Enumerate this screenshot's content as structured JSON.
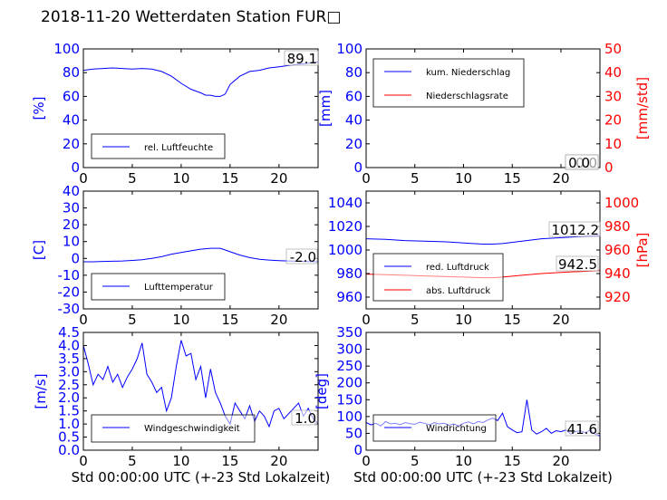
{
  "title": "2018-11-20 Wetterdaten Station FUR□",
  "colors": {
    "left_axis": "#0000ff",
    "right_axis": "#ff0000",
    "frame": "#000000"
  },
  "chart_data": [
    {
      "id": "humidity",
      "type": "line",
      "x_range": [
        0,
        24
      ],
      "xticks": [
        0,
        5,
        10,
        15,
        20
      ],
      "ylim": [
        0,
        100
      ],
      "yticks": [
        0,
        20,
        40,
        60,
        80,
        100
      ],
      "ylabel": "[%]",
      "xlabel": "",
      "legend_placement": "lower-left",
      "value_box": "89.1",
      "series": [
        {
          "name": "rel. Luftfeuchte",
          "color": "#0000ff",
          "x": [
            0,
            1,
            2,
            3,
            4,
            5,
            6,
            7,
            8,
            9,
            10,
            11,
            12,
            12.5,
            13,
            13.5,
            14,
            14.5,
            15,
            16,
            17,
            18,
            19,
            20,
            21,
            22,
            23,
            24
          ],
          "y": [
            82,
            83,
            83.5,
            84,
            83.5,
            83,
            83.5,
            83,
            81,
            77,
            71,
            66,
            63,
            61,
            61,
            60,
            60,
            62,
            70,
            77,
            81,
            82,
            84,
            85,
            86,
            87,
            88,
            89.1
          ]
        }
      ]
    },
    {
      "id": "precip",
      "type": "line",
      "x_range": [
        0,
        24
      ],
      "xticks": [
        0,
        5,
        10,
        15,
        20
      ],
      "ylim": [
        0,
        100
      ],
      "yticks": [
        0,
        20,
        40,
        60,
        80,
        100
      ],
      "ylim_right": [
        0,
        50
      ],
      "yticks_right": [
        0,
        10,
        20,
        30,
        40,
        50
      ],
      "ylabel": "[mm]",
      "ylabel_right": "[mm/std]",
      "xlabel": "",
      "legend_placement": "upper-left",
      "value_box": "0.0",
      "value_box_2": "0.0",
      "series": [
        {
          "name": "kum. Niederschlag",
          "color": "#0000ff",
          "axis": "left",
          "x": [
            0,
            24
          ],
          "y": [
            0,
            0
          ]
        },
        {
          "name": "Niederschlagsrate",
          "color": "#ff0000",
          "axis": "right",
          "x": [
            0,
            24
          ],
          "y": [
            0,
            0
          ]
        }
      ]
    },
    {
      "id": "temperature",
      "type": "line",
      "x_range": [
        0,
        24
      ],
      "xticks": [
        0,
        5,
        10,
        15,
        20
      ],
      "ylim": [
        -30,
        40
      ],
      "yticks": [
        -30,
        -20,
        -10,
        0,
        10,
        20,
        30,
        40
      ],
      "ylabel": "[C]",
      "xlabel": "",
      "legend_placement": "lower-left",
      "value_box": "-2.0",
      "series": [
        {
          "name": "Lufttemperatur",
          "color": "#0000ff",
          "x": [
            0,
            1,
            2,
            3,
            4,
            5,
            6,
            7,
            8,
            9,
            10,
            11,
            12,
            13,
            14,
            15,
            16,
            17,
            18,
            19,
            20,
            21,
            22,
            23,
            24
          ],
          "y": [
            -2,
            -2,
            -1.8,
            -1.7,
            -1.5,
            -1.2,
            -0.8,
            0,
            1,
            2.5,
            3.5,
            4.5,
            5.5,
            6,
            6,
            4,
            2,
            0.5,
            -0.5,
            -1,
            -1.3,
            -1.5,
            -1.7,
            -1.9,
            -2.0
          ]
        }
      ]
    },
    {
      "id": "pressure",
      "type": "line",
      "x_range": [
        0,
        24
      ],
      "xticks": [
        0,
        5,
        10,
        15,
        20
      ],
      "ylim": [
        950,
        1050
      ],
      "yticks": [
        960,
        980,
        1000,
        1020,
        1040
      ],
      "ylim_right": [
        910,
        1010
      ],
      "yticks_right": [
        920,
        940,
        960,
        980,
        1000
      ],
      "ylabel": "",
      "ylabel_right": "[hPa]",
      "xlabel": "",
      "legend_placement": "lower-left",
      "value_box": "1012.2",
      "value_box_2": "942.5",
      "series": [
        {
          "name": "red. Luftdruck",
          "color": "#0000ff",
          "axis": "left",
          "x": [
            0,
            2,
            4,
            6,
            8,
            10,
            12,
            13,
            14,
            16,
            18,
            20,
            22,
            24
          ],
          "y": [
            1009.5,
            1009,
            1008,
            1007.5,
            1007,
            1006,
            1005,
            1005,
            1005.5,
            1007.5,
            1009.5,
            1010.5,
            1011.5,
            1012.2
          ]
        },
        {
          "name": "abs. Luftdruck",
          "color": "#ff0000",
          "axis": "right",
          "x": [
            0,
            2,
            4,
            6,
            8,
            10,
            12,
            13,
            14,
            16,
            18,
            20,
            22,
            24
          ],
          "y": [
            939.5,
            939,
            938.5,
            938,
            937.5,
            937,
            936.5,
            936.5,
            937,
            938.5,
            940,
            941,
            941.8,
            942.5
          ]
        }
      ]
    },
    {
      "id": "wind_speed",
      "type": "line",
      "x_range": [
        0,
        24
      ],
      "xticks": [
        0,
        5,
        10,
        15,
        20
      ],
      "ylim": [
        0,
        4.5
      ],
      "yticks": [
        0.0,
        0.5,
        1.0,
        1.5,
        2.0,
        2.5,
        3.0,
        3.5,
        4.0,
        4.5
      ],
      "ylabel": "[m/s]",
      "xlabel": "Std 00:00:00 UTC (+-23 Std Lokalzeit)",
      "legend_placement": "lower-left",
      "value_box": "1.0",
      "series": [
        {
          "name": "Windgeschwindigkeit",
          "color": "#0000ff",
          "x": [
            0,
            0.5,
            1,
            1.5,
            2,
            2.5,
            3,
            3.5,
            4,
            4.5,
            5,
            5.5,
            6,
            6.5,
            7,
            7.5,
            8,
            8.5,
            9,
            9.5,
            10,
            10.5,
            11,
            11.5,
            12,
            12.5,
            13,
            13.5,
            14,
            14.5,
            15,
            15.5,
            16,
            16.5,
            17,
            17.5,
            18,
            18.5,
            19,
            19.5,
            20,
            20.5,
            21,
            21.5,
            22,
            22.5,
            23,
            23.5,
            24
          ],
          "y": [
            4.0,
            3.3,
            2.5,
            2.9,
            2.7,
            3.2,
            2.6,
            2.9,
            2.4,
            2.8,
            3.1,
            3.5,
            4.1,
            2.9,
            2.6,
            2.2,
            2.4,
            1.5,
            2.0,
            3.2,
            4.2,
            3.6,
            3.7,
            2.7,
            3.2,
            2.0,
            3.1,
            2.2,
            1.8,
            1.3,
            1.0,
            1.8,
            1.5,
            1.2,
            1.7,
            1.1,
            1.5,
            1.3,
            0.9,
            1.5,
            1.6,
            1.2,
            1.4,
            1.6,
            1.8,
            1.3,
            1.6,
            1.2,
            1.0
          ]
        }
      ]
    },
    {
      "id": "wind_dir",
      "type": "line",
      "x_range": [
        0,
        24
      ],
      "xticks": [
        0,
        5,
        10,
        15,
        20
      ],
      "ylim": [
        0,
        350
      ],
      "yticks": [
        0,
        50,
        100,
        150,
        200,
        250,
        300,
        350
      ],
      "ylabel": "[deg]",
      "xlabel": "Std 00:00:00 UTC (+-23 Std Lokalzeit)",
      "legend_placement": "lower-left",
      "value_box": "41.6",
      "series": [
        {
          "name": "Windrichtung",
          "color": "#0000ff",
          "x": [
            0,
            0.5,
            1,
            1.5,
            2,
            2.5,
            3,
            3.5,
            4,
            4.5,
            5,
            5.5,
            6,
            6.5,
            7,
            7.5,
            8,
            8.5,
            9,
            9.5,
            10,
            10.5,
            11,
            11.5,
            12,
            12.5,
            13,
            13.5,
            14,
            14.5,
            15,
            15.5,
            16,
            16.5,
            17,
            17.5,
            18,
            18.5,
            19,
            19.5,
            20,
            20.5,
            21,
            21.5,
            22,
            22.5,
            23,
            23.5,
            24
          ],
          "y": [
            82,
            75,
            80,
            72,
            85,
            78,
            80,
            76,
            82,
            79,
            77,
            83,
            80,
            75,
            82,
            78,
            80,
            74,
            78,
            72,
            80,
            84,
            78,
            85,
            82,
            90,
            95,
            88,
            110,
            70,
            60,
            52,
            55,
            150,
            60,
            48,
            55,
            65,
            50,
            58,
            55,
            60,
            48,
            55,
            58,
            52,
            60,
            48,
            42
          ]
        }
      ]
    }
  ]
}
